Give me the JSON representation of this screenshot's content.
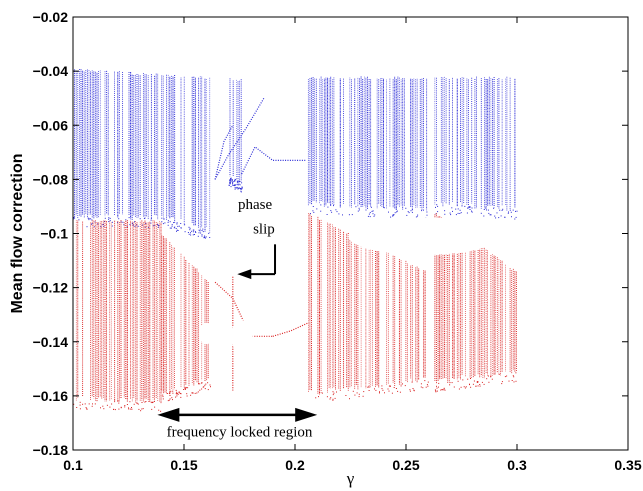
{
  "chart_data": {
    "type": "scatter",
    "xlabel": "γ",
    "ylabel": "Mean flow correction",
    "xlim": [
      0.1,
      0.35
    ],
    "ylim": [
      -0.18,
      -0.02
    ],
    "x_ticks": [
      "0.1",
      "0.15",
      "0.2",
      "0.25",
      "0.3",
      "0.35"
    ],
    "y_ticks": [
      "−0.18",
      "−0.16",
      "−0.14",
      "−0.12",
      "−0.1",
      "−0.08",
      "−0.06",
      "−0.04",
      "−0.02"
    ],
    "grid": false,
    "colors": {
      "upper": "#2b2bd6",
      "lower": "#d92020",
      "ink": "#000000"
    },
    "series": [
      {
        "color_key": "upper",
        "bands": [
          {
            "x": [
              0.1,
              0.14
            ],
            "y_top": [
              -0.039,
              -0.041
            ],
            "y_bot": [
              -0.095,
              -0.095
            ]
          },
          {
            "x": [
              0.14,
              0.162
            ],
            "y_top": [
              -0.041,
              -0.042
            ],
            "y_bot": [
              -0.095,
              -0.1
            ]
          },
          {
            "x": [
              0.17,
              0.176
            ],
            "y_top": [
              -0.042,
              -0.043
            ],
            "y_bot": [
              -0.08,
              -0.082
            ]
          },
          {
            "x": [
              0.206,
              0.26
            ],
            "y_top": [
              -0.042,
              -0.042
            ],
            "y_bot": [
              -0.09,
              -0.092
            ]
          },
          {
            "x": [
              0.263,
              0.3
            ],
            "y_top": [
              -0.042,
              -0.042
            ],
            "y_bot": [
              -0.09,
              -0.092
            ]
          }
        ],
        "branches": [
          {
            "x": [
              0.164,
              0.17,
              0.178,
              0.186
            ],
            "y": [
              -0.08,
              -0.071,
              -0.061,
              -0.05
            ]
          },
          {
            "x": [
              0.176,
              0.182,
              0.19,
              0.205
            ],
            "y": [
              -0.078,
              -0.068,
              -0.073,
              -0.073
            ]
          },
          {
            "x": [
              0.164,
              0.168,
              0.172
            ],
            "y": [
              -0.08,
              -0.066,
              -0.06
            ]
          }
        ]
      },
      {
        "color_key": "lower",
        "bands": [
          {
            "x": [
              0.1,
              0.14
            ],
            "y_top": [
              -0.095,
              -0.095
            ],
            "y_bot": [
              -0.162,
              -0.163
            ]
          },
          {
            "x": [
              0.14,
              0.162
            ],
            "y_top": [
              -0.1,
              -0.118
            ],
            "y_bot": [
              -0.16,
              -0.155
            ]
          },
          {
            "x": [
              0.206,
              0.26
            ],
            "y_top": [
              -0.092,
              -0.114
            ],
            "y_bot": [
              -0.16,
              -0.155
            ]
          },
          {
            "x": [
              0.263,
              0.3
            ],
            "y_top": [
              -0.092,
              -0.114
            ],
            "y_bot": [
              -0.156,
              -0.152
            ]
          }
        ],
        "branches": [
          {
            "x": [
              0.164,
              0.172,
              0.18,
              0.19
            ],
            "y": [
              -0.118,
              -0.124,
              -0.138,
              -0.138
            ]
          },
          {
            "x": [
              0.19,
              0.198,
              0.206
            ],
            "y": [
              -0.138,
              -0.136,
              -0.133
            ]
          },
          {
            "x": [
              0.172,
              0.172
            ],
            "y": [
              -0.116,
              -0.158
            ]
          }
        ],
        "holes": [
          {
            "cx": 0.258,
            "cy": -0.101,
            "rx": 0.034,
            "ry": 0.007
          },
          {
            "cx": 0.176,
            "cy": -0.138,
            "rx": 0.005,
            "ry": 0.006
          },
          {
            "cx": 0.16,
            "cy": -0.137,
            "rx": 0.003,
            "ry": 0.004
          }
        ]
      }
    ],
    "annotations": [
      {
        "text": "phase",
        "x": 0.182,
        "y": -0.091
      },
      {
        "text": "slip",
        "x": 0.186,
        "y": -0.1
      },
      {
        "text": "frequency locked region",
        "x": 0.175,
        "y": -0.175
      }
    ],
    "arrows": [
      {
        "type": "pointer",
        "from": [
          0.191,
          -0.104
        ],
        "to": [
          0.174,
          -0.115
        ]
      },
      {
        "type": "double",
        "from": [
          0.138,
          -0.167
        ],
        "to": [
          0.21,
          -0.167
        ]
      }
    ]
  }
}
